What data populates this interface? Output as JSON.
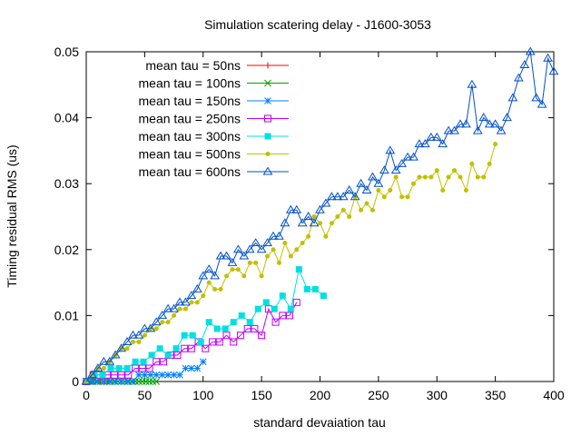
{
  "chart_data": {
    "type": "line",
    "title": "Simulation scatering delay - J1600-3053",
    "xlabel": "standard devaiation tau",
    "ylabel": "Timing residual RMS (us)",
    "xlim": [
      0,
      400
    ],
    "ylim": [
      0,
      0.05
    ],
    "xticks": [
      "0",
      "50",
      "100",
      "150",
      "200",
      "250",
      "300",
      "350",
      "400"
    ],
    "xtick_values": [
      0,
      50,
      100,
      150,
      200,
      250,
      300,
      350,
      400
    ],
    "yticks": [
      "0",
      "0.01",
      "0.02",
      "0.03",
      "0.04",
      "0.05"
    ],
    "ytick_values": [
      0,
      0.01,
      0.02,
      0.03,
      0.04,
      0.05
    ],
    "grid": false,
    "legend_position": "top-left",
    "series": [
      {
        "name": "mean tau = 50ns",
        "color": "#ff0000",
        "marker": "plus",
        "x": [
          0,
          2,
          4,
          6,
          8,
          10,
          12,
          14,
          16,
          18,
          20
        ],
        "y": [
          0,
          0,
          0,
          0,
          0,
          0,
          0,
          0,
          0,
          0,
          0
        ]
      },
      {
        "name": "mean tau = 100ns",
        "color": "#00a000",
        "marker": "cross",
        "x": [
          0,
          3,
          6,
          9,
          12,
          15,
          18,
          21,
          24,
          27,
          30,
          33,
          36,
          39,
          42,
          45,
          48,
          51,
          54,
          57,
          60
        ],
        "y": [
          0,
          0,
          0,
          0,
          0,
          0,
          0,
          0,
          0,
          0,
          0,
          0,
          0,
          0,
          0,
          0,
          0,
          0,
          0,
          0,
          0
        ]
      },
      {
        "name": "mean tau = 150ns",
        "color": "#0080ff",
        "marker": "star",
        "x": [
          0,
          5,
          10,
          15,
          20,
          25,
          30,
          35,
          40,
          45,
          50,
          55,
          60,
          65,
          70,
          75,
          80,
          85,
          90,
          95,
          100
        ],
        "y": [
          0,
          0,
          0,
          0,
          0,
          0,
          0,
          0,
          0,
          0.001,
          0.001,
          0.001,
          0.001,
          0.001,
          0.001,
          0.001,
          0.001,
          0.002,
          0.002,
          0.002,
          0.003
        ]
      },
      {
        "name": "mean tau = 250ns",
        "color": "#c000ff",
        "marker": "box",
        "x": [
          0,
          6,
          12,
          18,
          24,
          30,
          36,
          42,
          48,
          54,
          60,
          66,
          72,
          78,
          84,
          90,
          96,
          102,
          108,
          114,
          120,
          126,
          132,
          138,
          144,
          150,
          156,
          162,
          168,
          174,
          180
        ],
        "y": [
          0,
          0.001,
          0.001,
          0.001,
          0.001,
          0.001,
          0.001,
          0.002,
          0.002,
          0.002,
          0.003,
          0.003,
          0.004,
          0.004,
          0.005,
          0.005,
          0.006,
          0.005,
          0.006,
          0.006,
          0.007,
          0.006,
          0.007,
          0.008,
          0.008,
          0.007,
          0.011,
          0.009,
          0.01,
          0.01,
          0.012
        ]
      },
      {
        "name": "mean tau = 300ns",
        "color": "#00e0e0",
        "marker": "filled-box",
        "x": [
          0,
          7,
          14,
          21,
          28,
          35,
          42,
          49,
          56,
          63,
          70,
          77,
          84,
          91,
          98,
          105,
          112,
          119,
          126,
          133,
          140,
          147,
          154,
          161,
          168,
          175,
          182,
          189,
          196,
          203
        ],
        "y": [
          0,
          0.001,
          0.001,
          0.002,
          0.002,
          0.002,
          0.003,
          0.003,
          0.004,
          0.005,
          0.004,
          0.005,
          0.007,
          0.007,
          0.006,
          0.009,
          0.008,
          0.008,
          0.009,
          0.01,
          0.009,
          0.011,
          0.012,
          0.011,
          0.013,
          0.011,
          0.017,
          0.014,
          0.014,
          0.013
        ]
      },
      {
        "name": "mean tau = 500ns",
        "color": "#c0c000",
        "marker": "filled-circle",
        "x": [
          0,
          5,
          10,
          15,
          20,
          25,
          30,
          35,
          40,
          45,
          50,
          55,
          60,
          65,
          70,
          75,
          80,
          85,
          90,
          95,
          100,
          105,
          110,
          115,
          120,
          125,
          130,
          135,
          140,
          145,
          150,
          155,
          160,
          165,
          170,
          175,
          180,
          185,
          190,
          195,
          200,
          205,
          210,
          215,
          220,
          225,
          230,
          235,
          240,
          245,
          250,
          255,
          260,
          265,
          270,
          275,
          280,
          285,
          290,
          295,
          300,
          305,
          310,
          315,
          320,
          325,
          330,
          335,
          340,
          345,
          350
        ],
        "y": [
          0,
          0.001,
          0.002,
          0.002,
          0.003,
          0.004,
          0.005,
          0.005,
          0.006,
          0.006,
          0.007,
          0.008,
          0.008,
          0.009,
          0.009,
          0.01,
          0.011,
          0.011,
          0.012,
          0.012,
          0.013,
          0.015,
          0.014,
          0.014,
          0.016,
          0.017,
          0.017,
          0.016,
          0.018,
          0.018,
          0.016,
          0.019,
          0.02,
          0.018,
          0.021,
          0.019,
          0.02,
          0.021,
          0.022,
          0.025,
          0.024,
          0.022,
          0.024,
          0.025,
          0.026,
          0.025,
          0.028,
          0.026,
          0.027,
          0.026,
          0.029,
          0.028,
          0.029,
          0.031,
          0.028,
          0.028,
          0.03,
          0.031,
          0.031,
          0.031,
          0.032,
          0.029,
          0.031,
          0.032,
          0.031,
          0.029,
          0.033,
          0.031,
          0.031,
          0.033,
          0.036
        ]
      },
      {
        "name": "mean tau = 600ns",
        "color": "#0050c8",
        "marker": "triangle",
        "x": [
          0,
          5,
          10,
          15,
          20,
          25,
          30,
          35,
          40,
          45,
          50,
          55,
          60,
          65,
          70,
          75,
          80,
          85,
          90,
          95,
          100,
          105,
          110,
          115,
          120,
          125,
          130,
          135,
          140,
          145,
          150,
          155,
          160,
          165,
          170,
          175,
          180,
          185,
          190,
          195,
          200,
          205,
          210,
          215,
          220,
          225,
          230,
          235,
          240,
          245,
          250,
          255,
          260,
          265,
          270,
          275,
          280,
          285,
          290,
          295,
          300,
          305,
          310,
          315,
          320,
          325,
          330,
          335,
          340,
          345,
          350,
          355,
          360,
          365,
          370,
          375,
          380,
          385,
          390,
          395,
          400
        ],
        "y": [
          0,
          0.001,
          0.002,
          0.003,
          0.003,
          0.004,
          0.005,
          0.006,
          0.007,
          0.007,
          0.008,
          0.008,
          0.009,
          0.01,
          0.011,
          0.011,
          0.012,
          0.012,
          0.013,
          0.014,
          0.016,
          0.017,
          0.016,
          0.019,
          0.019,
          0.018,
          0.02,
          0.019,
          0.02,
          0.021,
          0.02,
          0.021,
          0.022,
          0.022,
          0.024,
          0.026,
          0.026,
          0.024,
          0.025,
          0.024,
          0.026,
          0.027,
          0.028,
          0.028,
          0.028,
          0.029,
          0.028,
          0.03,
          0.029,
          0.031,
          0.03,
          0.032,
          0.035,
          0.032,
          0.033,
          0.034,
          0.034,
          0.036,
          0.036,
          0.037,
          0.037,
          0.036,
          0.038,
          0.038,
          0.039,
          0.039,
          0.045,
          0.038,
          0.04,
          0.039,
          0.039,
          0.038,
          0.04,
          0.043,
          0.046,
          0.048,
          0.05,
          0.043,
          0.042,
          0.049,
          0.047
        ]
      }
    ]
  }
}
